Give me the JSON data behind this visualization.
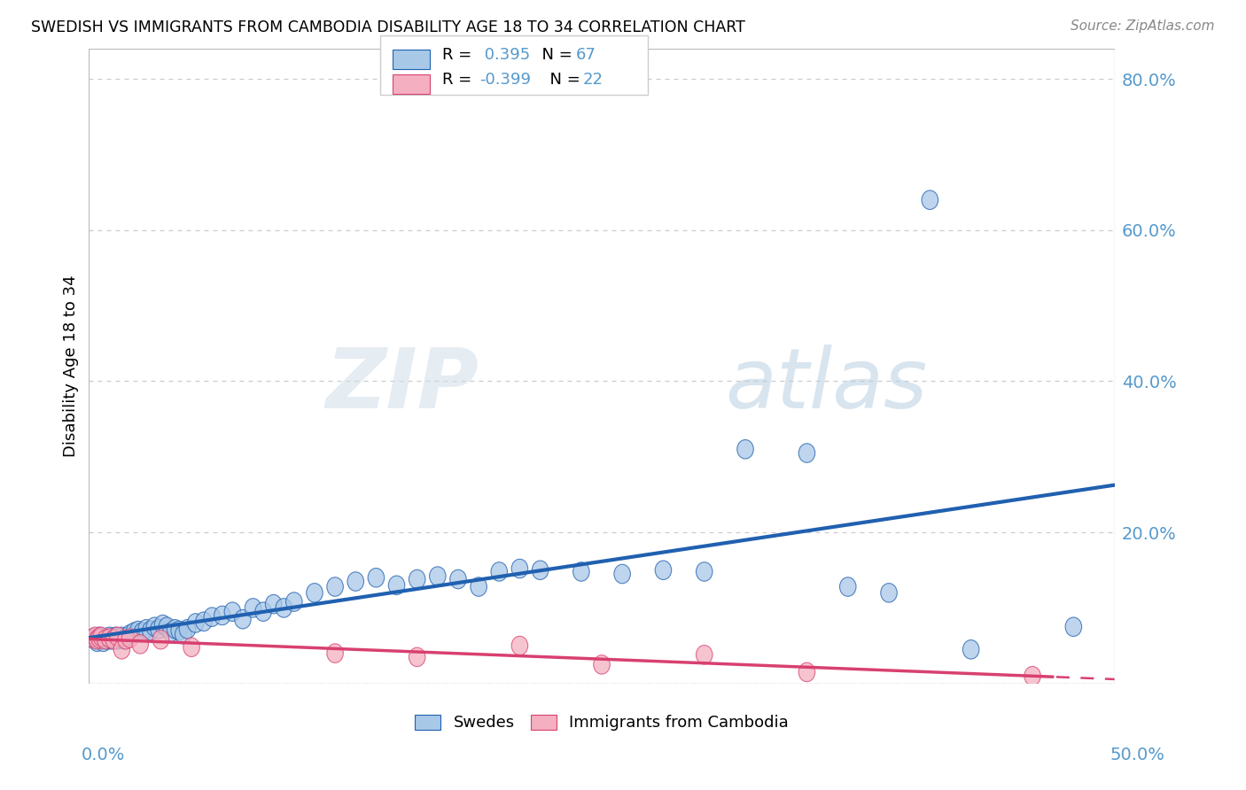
{
  "title": "SWEDISH VS IMMIGRANTS FROM CAMBODIA DISABILITY AGE 18 TO 34 CORRELATION CHART",
  "source": "Source: ZipAtlas.com",
  "ylabel": "Disability Age 18 to 34",
  "legend_bottom": [
    "Swedes",
    "Immigrants from Cambodia"
  ],
  "r_swedes": 0.395,
  "n_swedes": 67,
  "r_cambodia": -0.399,
  "n_cambodia": 22,
  "xmin": 0.0,
  "xmax": 0.5,
  "ymin": 0.0,
  "ymax": 0.84,
  "yticks": [
    0.0,
    0.2,
    0.4,
    0.6,
    0.8
  ],
  "ytick_labels": [
    "",
    "20.0%",
    "40.0%",
    "60.0%",
    "80.0%"
  ],
  "color_swedes": "#a8c8e8",
  "color_cambodia": "#f4b0c0",
  "line_color_swedes": "#2060b0",
  "line_color_cambodia": "#d84070",
  "watermark_zip": "ZIP",
  "watermark_atlas": "atlas",
  "swedes_x": [
    0.002,
    0.003,
    0.004,
    0.005,
    0.006,
    0.007,
    0.008,
    0.009,
    0.01,
    0.011,
    0.012,
    0.013,
    0.014,
    0.015,
    0.016,
    0.017,
    0.018,
    0.019,
    0.02,
    0.022,
    0.024,
    0.026,
    0.028,
    0.03,
    0.032,
    0.034,
    0.036,
    0.038,
    0.04,
    0.042,
    0.044,
    0.046,
    0.048,
    0.052,
    0.056,
    0.06,
    0.065,
    0.07,
    0.075,
    0.08,
    0.085,
    0.09,
    0.095,
    0.1,
    0.11,
    0.12,
    0.13,
    0.14,
    0.15,
    0.16,
    0.17,
    0.18,
    0.19,
    0.2,
    0.21,
    0.22,
    0.24,
    0.26,
    0.28,
    0.3,
    0.32,
    0.35,
    0.37,
    0.39,
    0.41,
    0.43,
    0.48
  ],
  "swedes_y": [
    0.06,
    0.058,
    0.055,
    0.062,
    0.058,
    0.055,
    0.06,
    0.058,
    0.062,
    0.058,
    0.06,
    0.062,
    0.058,
    0.06,
    0.062,
    0.058,
    0.06,
    0.062,
    0.065,
    0.068,
    0.07,
    0.068,
    0.072,
    0.07,
    0.075,
    0.072,
    0.078,
    0.075,
    0.068,
    0.072,
    0.07,
    0.065,
    0.072,
    0.08,
    0.082,
    0.088,
    0.09,
    0.095,
    0.085,
    0.1,
    0.095,
    0.105,
    0.1,
    0.108,
    0.12,
    0.128,
    0.135,
    0.14,
    0.13,
    0.138,
    0.142,
    0.138,
    0.128,
    0.148,
    0.152,
    0.15,
    0.148,
    0.145,
    0.15,
    0.148,
    0.31,
    0.305,
    0.128,
    0.12,
    0.64,
    0.045,
    0.075
  ],
  "cambodia_x": [
    0.002,
    0.003,
    0.004,
    0.005,
    0.006,
    0.008,
    0.01,
    0.012,
    0.014,
    0.016,
    0.018,
    0.02,
    0.025,
    0.035,
    0.05,
    0.12,
    0.16,
    0.21,
    0.25,
    0.3,
    0.35,
    0.46
  ],
  "cambodia_y": [
    0.06,
    0.062,
    0.058,
    0.06,
    0.062,
    0.058,
    0.06,
    0.058,
    0.062,
    0.045,
    0.058,
    0.06,
    0.052,
    0.058,
    0.048,
    0.04,
    0.035,
    0.05,
    0.025,
    0.038,
    0.015,
    0.01
  ]
}
